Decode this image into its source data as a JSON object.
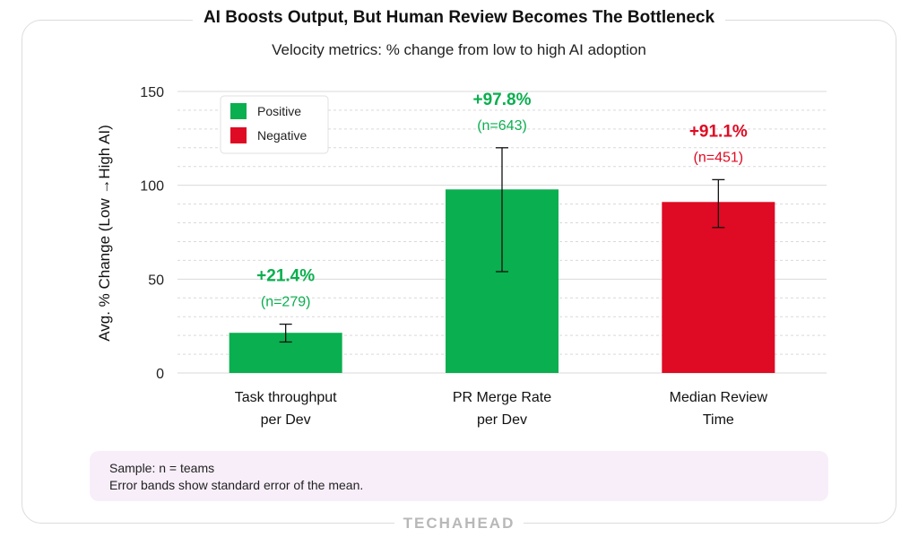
{
  "chart_data": {
    "type": "bar",
    "title": "AI Boosts Output, But Human Review Becomes The Bottleneck",
    "subtitle": "Velocity metrics: % change from low to high AI adoption",
    "ylabel": "Avg. % Change (Low →High AI)",
    "ylim": [
      0,
      150
    ],
    "yticks": [
      0,
      50,
      100,
      150
    ],
    "grid": true,
    "legend_position": "top-left",
    "legend": [
      {
        "label": "Positive",
        "color": "#0aaf4f"
      },
      {
        "label": "Negative",
        "color": "#df0a23"
      }
    ],
    "categories": [
      [
        "Task throughput",
        "per Dev"
      ],
      [
        "PR Merge Rate",
        "per Dev"
      ],
      [
        "Median Review",
        "Time"
      ]
    ],
    "values": [
      21.4,
      97.8,
      91.1
    ],
    "error_low": [
      16.5,
      54,
      77.5
    ],
    "error_high": [
      26,
      120,
      103
    ],
    "labels": [
      "+21.4%",
      "+97.8%",
      "+91.1%"
    ],
    "n_labels": [
      "(n=279)",
      "(n=643)",
      "(n=451)"
    ],
    "sentiment": [
      "positive",
      "positive",
      "negative"
    ]
  },
  "note": {
    "line1": "Sample: n = teams",
    "line2": "Error bands show standard error of the mean."
  },
  "brand": "TECHAHEAD",
  "colors": {
    "positive": "#0aaf4f",
    "negative": "#df0a23",
    "grid": "#d9d9d9"
  }
}
